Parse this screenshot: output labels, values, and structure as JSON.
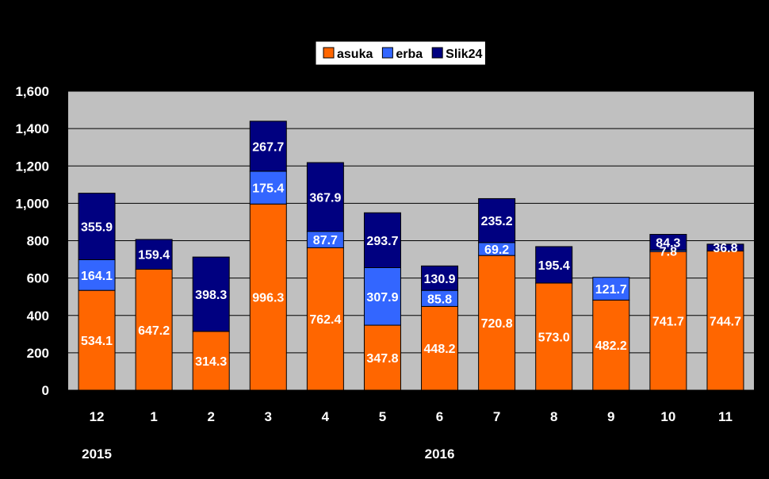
{
  "chart_data": {
    "type": "bar",
    "stacked": true,
    "categories": [
      "12",
      "1",
      "2",
      "3",
      "4",
      "5",
      "6",
      "7",
      "8",
      "9",
      "10",
      "11"
    ],
    "year_labels": [
      {
        "label": "2015",
        "category_index": 0
      },
      {
        "label": "2016",
        "category_index": 6
      }
    ],
    "series": [
      {
        "name": "asuka",
        "color": "#FF6600",
        "values": [
          534.1,
          647.2,
          314.3,
          996.3,
          762.4,
          347.8,
          448.2,
          720.8,
          573.0,
          482.2,
          741.7,
          744.7
        ],
        "labels": [
          "534.1",
          "647.2",
          "314.3",
          "996.3",
          "762.4",
          "347.8",
          "448.2",
          "720.8",
          "573.0",
          "482.2",
          "741.7",
          "744.7"
        ]
      },
      {
        "name": "erba",
        "color": "#3366FF",
        "values": [
          164.1,
          0,
          0,
          175.4,
          87.7,
          307.9,
          85.8,
          69.2,
          0,
          121.7,
          7.8,
          0
        ],
        "labels": [
          "164.1",
          "",
          "",
          "175.4",
          "87.7",
          "307.9",
          "85.8",
          "69.2",
          "",
          "121.7",
          "7.8",
          ""
        ]
      },
      {
        "name": "Slik24",
        "color": "#000080",
        "values": [
          355.9,
          159.4,
          398.3,
          267.7,
          367.9,
          293.7,
          130.9,
          235.2,
          195.4,
          0,
          84.3,
          36.8
        ],
        "labels": [
          "355.9",
          "159.4",
          "398.3",
          "267.7",
          "367.9",
          "293.7",
          "130.9",
          "235.2",
          "195.4",
          "",
          "84.3",
          "36.8"
        ]
      }
    ],
    "yticks": [
      "0",
      "200",
      "400",
      "600",
      "800",
      "1,000",
      "1,200",
      "1,400",
      "1,600"
    ],
    "ylim": [
      0,
      1600
    ],
    "grid": true,
    "legend_position": "top-center",
    "plot_background": "#C0C0C0",
    "page_background": "#000000"
  }
}
